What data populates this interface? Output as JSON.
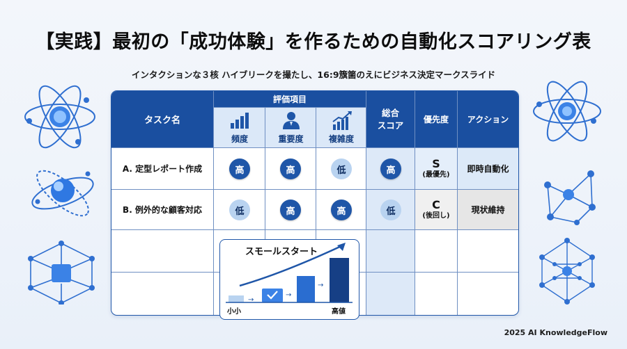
{
  "title": "【実践】最初の「成功体験」を作るための自動化スコアリング表",
  "subtitle": "インタクションな３核 ハイブリークを撮たし、16:9籏箘のえにビジネス決定マークスライド",
  "footer": "2025 AI KnowledgeFlow",
  "table": {
    "headers": {
      "task": "タスク名",
      "eval": "評価項目",
      "total": "総合\nスコア",
      "priority": "優先度",
      "action": "アクション"
    },
    "subheaders": [
      "頻度",
      "重要度",
      "複雑度"
    ],
    "rows": [
      {
        "name": "A. 定型レポート作成",
        "frequency": "高",
        "importance": "高",
        "complexity": "低",
        "total": "高",
        "priority_grade": "S",
        "priority_note": "(最優先)",
        "action": "即時自動化"
      },
      {
        "name": "B. 例外的な顧客対応",
        "frequency": "低",
        "importance": "高",
        "complexity": "高",
        "total": "低",
        "priority_grade": "C",
        "priority_note": "(後回し)",
        "action": "現状維持"
      }
    ]
  },
  "small_start": {
    "title": "スモールスタート",
    "low_label": "小小",
    "high_label": "高値"
  },
  "colors": {
    "primary": "#1a4fa0",
    "accent": "#1f56a8",
    "light": "#b9d3f0",
    "subheader": "#dbe8f8"
  }
}
